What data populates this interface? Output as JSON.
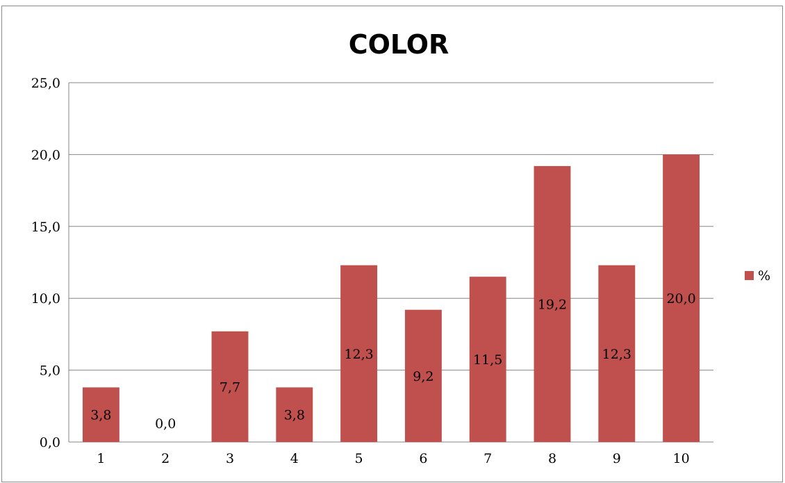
{
  "chart_data": {
    "type": "bar",
    "title": "COLOR",
    "categories": [
      "1",
      "2",
      "3",
      "4",
      "5",
      "6",
      "7",
      "8",
      "9",
      "10"
    ],
    "series": [
      {
        "name": "%",
        "values": [
          3.8,
          0.0,
          7.7,
          3.8,
          12.3,
          9.2,
          11.5,
          19.2,
          12.3,
          20.0
        ],
        "labels": [
          "3,8",
          "0,0",
          "7,7",
          "3,8",
          "12,3",
          "9,2",
          "11,5",
          "19,2",
          "12,3",
          "20,0"
        ],
        "color": "#c0504d"
      }
    ],
    "ylim": [
      0,
      25
    ],
    "yticks": [
      "0,0",
      "5,0",
      "10,0",
      "15,0",
      "20,0",
      "25,0"
    ],
    "grid": true,
    "legend": "right"
  }
}
